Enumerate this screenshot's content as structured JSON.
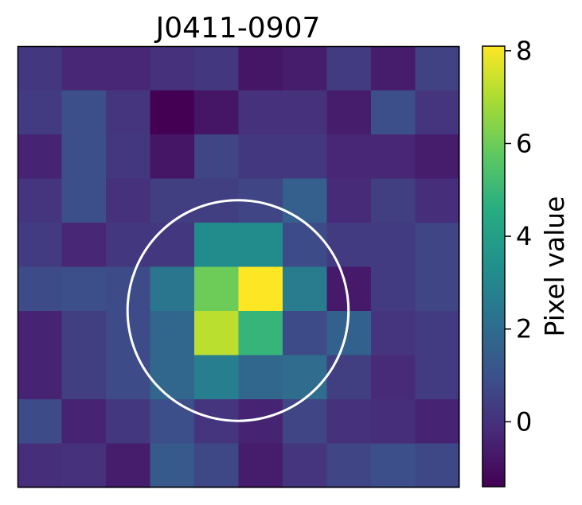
{
  "chart_data": {
    "type": "heatmap",
    "title": "J0411-0907",
    "colormap": "viridis",
    "value_range": [
      -1.4,
      8.1
    ],
    "grid": false,
    "values": [
      [
        0.2,
        -0.3,
        -0.3,
        0.0,
        0.2,
        -0.8,
        -0.6,
        0.3,
        -0.6,
        0.5
      ],
      [
        0.3,
        0.9,
        0.1,
        -1.4,
        -0.8,
        0.0,
        0.0,
        -0.6,
        0.9,
        0.1
      ],
      [
        -0.4,
        0.9,
        0.2,
        -0.8,
        0.6,
        0.2,
        0.2,
        -0.3,
        -0.3,
        -0.6
      ],
      [
        0.1,
        0.9,
        0.0,
        0.4,
        0.4,
        0.6,
        1.5,
        -0.2,
        0.4,
        -0.1
      ],
      [
        0.3,
        -0.3,
        0.2,
        0.2,
        3.2,
        3.2,
        0.8,
        0.3,
        0.3,
        0.6
      ],
      [
        0.8,
        0.9,
        0.8,
        2.4,
        6.0,
        8.1,
        2.6,
        -0.7,
        0.3,
        0.6
      ],
      [
        -0.4,
        0.4,
        0.8,
        1.8,
        7.2,
        4.9,
        0.8,
        1.6,
        0.1,
        0.3
      ],
      [
        -0.4,
        0.4,
        0.8,
        1.8,
        2.7,
        1.8,
        2.0,
        0.4,
        -0.2,
        0.3
      ],
      [
        0.8,
        -0.4,
        0.2,
        0.9,
        0.1,
        -0.4,
        0.6,
        0.0,
        -0.1,
        -0.4
      ],
      [
        -0.1,
        0.0,
        -0.6,
        1.3,
        0.7,
        -0.6,
        0.1,
        0.6,
        0.9,
        0.7
      ]
    ],
    "aperture": {
      "center": [
        4.99,
        5.99
      ],
      "radius": 2.5,
      "color": "#ffffff"
    },
    "colorbar": {
      "label": "Pixel value",
      "ticks": [
        8,
        6,
        4,
        2,
        0
      ]
    }
  }
}
